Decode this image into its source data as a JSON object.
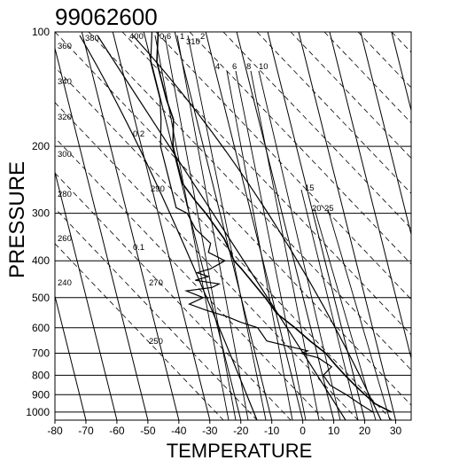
{
  "chart_data": {
    "type": "line",
    "title": "99062600",
    "xlabel": "TEMPERATURE",
    "ylabel": "PRESSURE",
    "xlim": [
      -80,
      35
    ],
    "ylim": [
      1050,
      100
    ],
    "y_scale": "log",
    "x_ticks": [
      "-80",
      "-70",
      "-60",
      "-50",
      "-40",
      "-30",
      "-20",
      "-10",
      "0",
      "10",
      "20",
      "30"
    ],
    "y_ticks": [
      "100",
      "200",
      "300",
      "400",
      "500",
      "600",
      "700",
      "800",
      "900",
      "1000"
    ],
    "isotherm_labels": [],
    "dry_adiabat_labels": [
      "360",
      "340",
      "320",
      "300",
      "280",
      "260",
      "240",
      "380",
      "400"
    ],
    "moist_adiabat_labels": [
      "310",
      "290",
      "270",
      "250"
    ],
    "mixing_ratio_labels": [
      "0.1",
      "0.2",
      "0.6",
      "1",
      "2",
      "4",
      "6",
      "8",
      "10",
      "15",
      "20",
      "25"
    ],
    "series": [
      {
        "values_note": "",
        "p": [
          1000,
          950,
          900,
          850,
          800,
          750,
          700,
          650,
          600,
          550,
          500,
          450,
          420,
          400,
          350,
          300,
          280,
          250,
          200,
          170,
          150,
          120,
          100
        ],
        "t": [
          28,
          22,
          18,
          14,
          10,
          6,
          2,
          -4,
          -10,
          -17,
          -22,
          -28,
          -32,
          -35,
          -40,
          -48,
          -52,
          -58,
          -64,
          -66,
          -70,
          -76,
          -78
        ]
      },
      {
        "p": [
          1000,
          950,
          900,
          850,
          800,
          760,
          720,
          700,
          690,
          650,
          600,
          580,
          560,
          540,
          520,
          500,
          480,
          470,
          460,
          450,
          440,
          430,
          420,
          400,
          380,
          360,
          330,
          300,
          290,
          250,
          200,
          170,
          150,
          120,
          100
        ],
        "t": [
          22,
          17,
          12,
          6,
          3,
          5,
          0,
          -6,
          -4,
          -18,
          -22,
          -28,
          -33,
          -40,
          -46,
          -42,
          -48,
          -40,
          -38,
          -46,
          -42,
          -46,
          -42,
          -38,
          -44,
          -44,
          -50,
          -54,
          -58,
          -62,
          -68,
          -70,
          -72,
          -78,
          -80
        ]
      }
    ]
  }
}
